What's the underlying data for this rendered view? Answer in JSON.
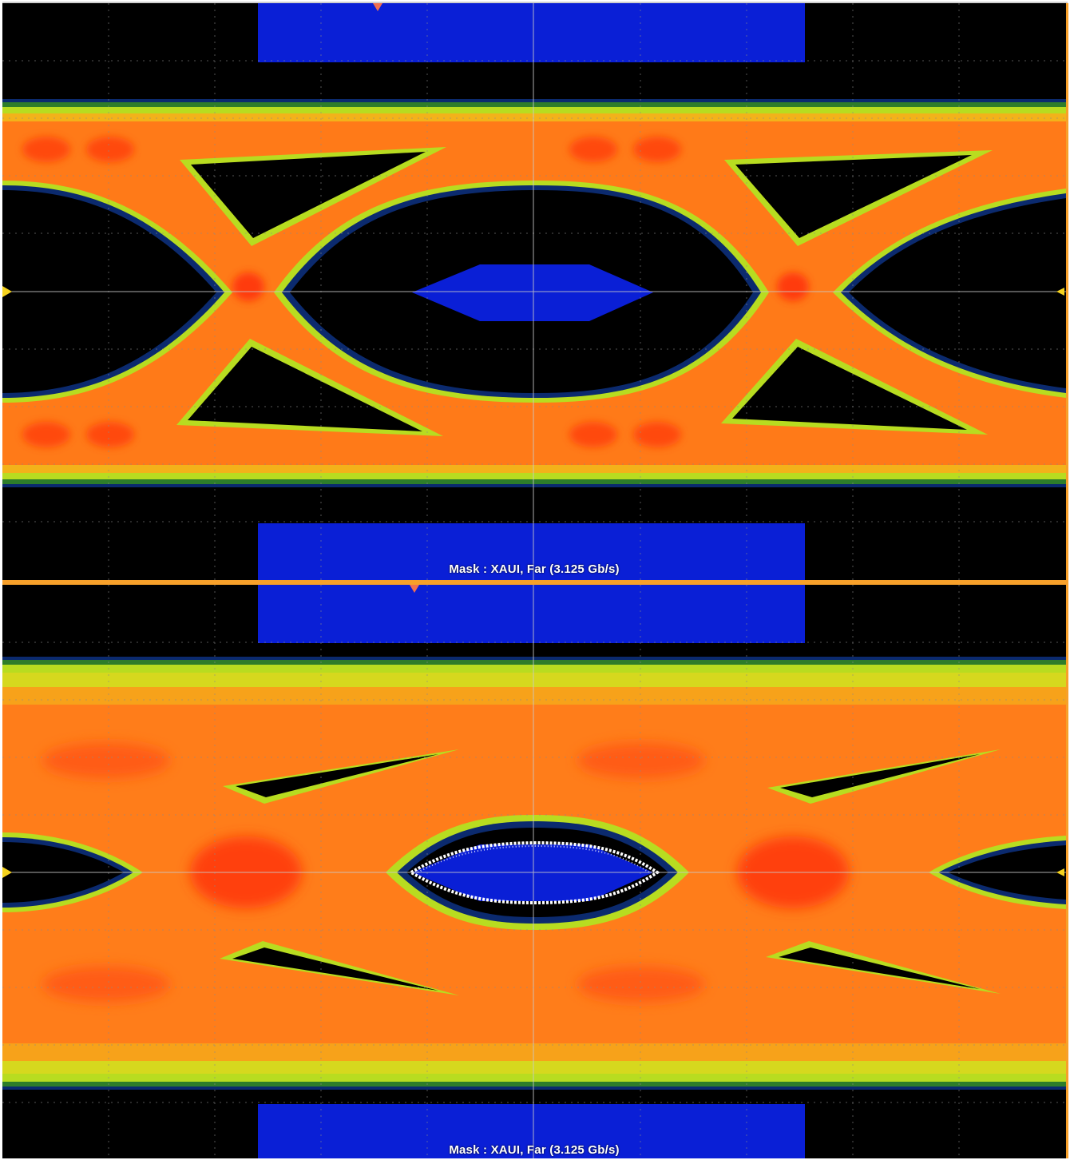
{
  "panels": [
    {
      "id": "top",
      "mask_label": "Mask : XAUI, Far (3.125 Gb/s)",
      "eye_state": "open",
      "mask_violations": false
    },
    {
      "id": "bottom",
      "mask_label": "Mask : XAUI, Far (3.125 Gb/s)",
      "eye_state": "closed",
      "mask_violations": true
    }
  ],
  "colors": {
    "background": "#000000",
    "mask": "#0a1fd6",
    "frame": "#f7a02a",
    "grid": "#8a8a8a",
    "marker": "#f4d21f",
    "trigger": "#f07050",
    "heat_low": "#0b2a6e",
    "heat_mid": "#c8e21e",
    "heat_high": "#ff5a14",
    "violation": "#ffffff"
  },
  "icons": [
    "trigger-marker-icon",
    "left-level-marker-icon",
    "right-level-marker-icon"
  ]
}
